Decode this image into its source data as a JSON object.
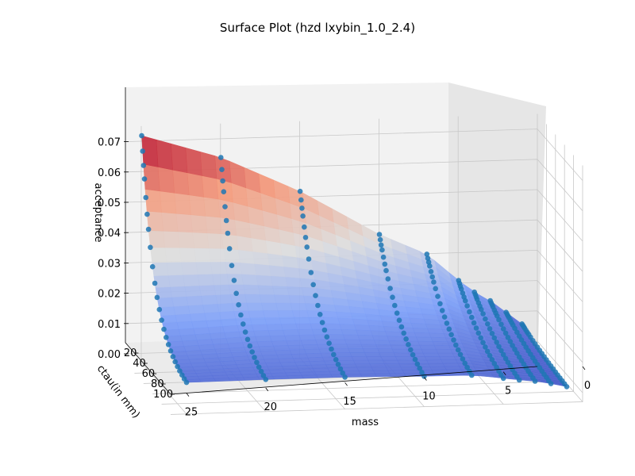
{
  "chart_data": {
    "type": "surface3d",
    "title": "Surface Plot (hzd lxybin_1.0_2.4)",
    "xlabel": "mass",
    "ylabel": "ctau(in mm)",
    "zlabel": "acceptance",
    "xlim": [
      0,
      26
    ],
    "ylim": [
      1,
      100
    ],
    "zlim": [
      -0.005,
      0.075
    ],
    "x_ticks": [
      "25",
      "20",
      "15",
      "10",
      "5",
      "0"
    ],
    "y_ticks": [
      "20",
      "40",
      "60",
      "80",
      "100"
    ],
    "z_ticks": [
      "0.00",
      "0.01",
      "0.02",
      "0.03",
      "0.04",
      "0.05",
      "0.06",
      "0.07"
    ],
    "colormap": "coolwarm",
    "scatter_color": "#1f77b4",
    "grid": true,
    "masses": [
      1,
      2,
      3,
      4,
      5,
      7,
      10,
      15,
      20,
      25
    ],
    "ctau_range": [
      1,
      100
    ],
    "acceptance_max_by_mass": {
      "25": 0.072,
      "20": 0.064,
      "15": 0.052,
      "10": 0.037,
      "7": 0.03,
      "5": 0.021,
      "4": 0.017,
      "3": 0.014,
      "2": 0.01,
      "1": 0.006
    }
  }
}
